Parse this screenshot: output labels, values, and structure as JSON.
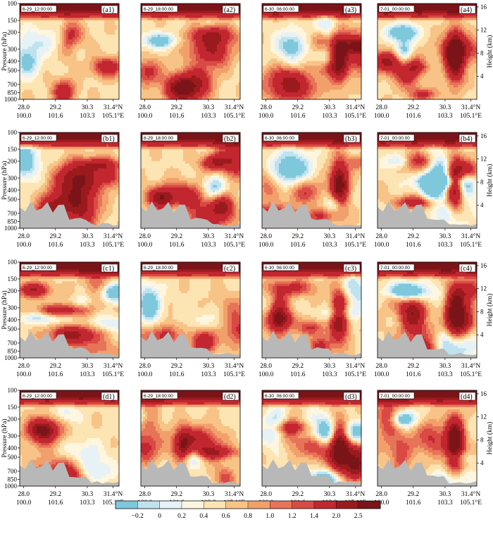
{
  "chart_data": {
    "type": "heatmap",
    "title": "",
    "ylabel_left": "Pressure (hPa)",
    "ylabel_right": "Height (km)",
    "pressure_ticks": [
      "100",
      "150",
      "200",
      "300",
      "400",
      "500",
      "700",
      "850",
      "1000"
    ],
    "height_ticks": [
      "16",
      "12",
      "8",
      "4"
    ],
    "x_ticks": [
      {
        "lat": "28.0",
        "lon": "100.0"
      },
      {
        "lat": "29.2",
        "lon": "101.6"
      },
      {
        "lat": "30.3",
        "lon": "103.3"
      },
      {
        "lat": "31.4°N",
        "lon": "105.1°E"
      }
    ],
    "rows": [
      "a",
      "b",
      "c",
      "d"
    ],
    "panels": [
      {
        "id": "(a1)",
        "time": "6-29_12:00:00"
      },
      {
        "id": "(a2)",
        "time": "6-29_18:00:00"
      },
      {
        "id": "(a3)",
        "time": "6-30_06:00:00"
      },
      {
        "id": "(a4)",
        "time": "7-01_00:00:00"
      },
      {
        "id": "(b1)",
        "time": "6-29_12:00:00"
      },
      {
        "id": "(b2)",
        "time": "6-29_18:00:00"
      },
      {
        "id": "(b3)",
        "time": "6-30_06:00:00"
      },
      {
        "id": "(b4)",
        "time": "7-01_00:00:00"
      },
      {
        "id": "(c1)",
        "time": "6-29_12:00:00"
      },
      {
        "id": "(c2)",
        "time": "6-29_18:00:00"
      },
      {
        "id": "(c3)",
        "time": "6-30_06:00:00"
      },
      {
        "id": "(c4)",
        "time": "7-01_00:00:00"
      },
      {
        "id": "(d1)",
        "time": "6-29_12:00:00"
      },
      {
        "id": "(d2)",
        "time": "6-29_18:00:00"
      },
      {
        "id": "(d3)",
        "time": "6-30_06:00:00"
      },
      {
        "id": "(d4)",
        "time": "7-01_00:00:00"
      }
    ],
    "colorbar": {
      "levels": [
        "−0.2",
        "0",
        "0.2",
        "0.4",
        "0.6",
        "0.8",
        "1.0",
        "1.2",
        "1.4",
        "2.0",
        "2.5"
      ],
      "colors": [
        "#7fc8dc",
        "#bfe3ee",
        "#e6f2f5",
        "#fff6e0",
        "#fde4b3",
        "#f8c387",
        "#f2a06b",
        "#e77458",
        "#d94a44",
        "#c2262f",
        "#9b1a1d",
        "#7a1418"
      ]
    },
    "terrain_color": "#b8b8b8"
  }
}
